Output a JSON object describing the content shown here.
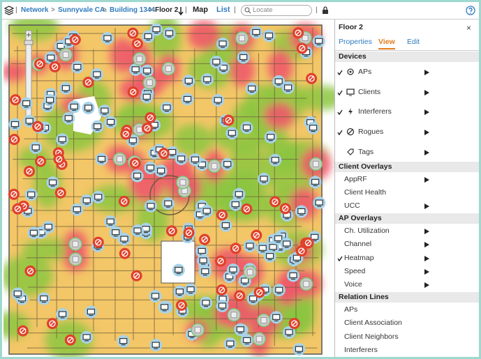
{
  "breadcrumb": [
    "Network",
    "Sunnyvale CA.",
    "Building 1344",
    "Floor 2"
  ],
  "view_buttons": [
    "Map",
    "List"
  ],
  "search_placeholder": "Locate",
  "panel": {
    "title": "Floor 2",
    "close": "×",
    "tabs": [
      "Properties",
      "View",
      "Edit"
    ],
    "sections": [
      {
        "title": "Devices",
        "items": [
          {
            "label": "APs",
            "checked": true,
            "submenu": true
          },
          {
            "label": "Clients",
            "checked": true,
            "submenu": true
          },
          {
            "label": "Interferers",
            "checked": true,
            "submenu": true
          },
          {
            "label": "Rogues",
            "checked": true,
            "submenu": true
          },
          {
            "label": "Tags",
            "checked": false,
            "submenu": true
          }
        ]
      },
      {
        "title": "Client Overlays",
        "items": [
          {
            "label": "AppRF",
            "checked": false,
            "submenu": true
          },
          {
            "label": "Client Health",
            "checked": false,
            "submenu": false
          },
          {
            "label": "UCC",
            "checked": false,
            "submenu": true
          }
        ]
      },
      {
        "title": "AP Overlays",
        "items": [
          {
            "label": "Ch. Utilization",
            "checked": false,
            "submenu": true
          },
          {
            "label": "Channel",
            "checked": false,
            "submenu": true
          },
          {
            "label": "Heatmap",
            "checked": true,
            "submenu": true
          },
          {
            "label": "Speed",
            "checked": false,
            "submenu": true
          },
          {
            "label": "Voice",
            "checked": false,
            "submenu": true
          }
        ]
      },
      {
        "title": "Relation Lines",
        "items": [
          {
            "label": "APs",
            "checked": false,
            "submenu": false
          },
          {
            "label": "Client Association",
            "checked": false,
            "submenu": false
          },
          {
            "label": "Client Neighbors",
            "checked": false,
            "submenu": false
          },
          {
            "label": "Interferers",
            "checked": false,
            "submenu": false
          }
        ]
      }
    ]
  }
}
